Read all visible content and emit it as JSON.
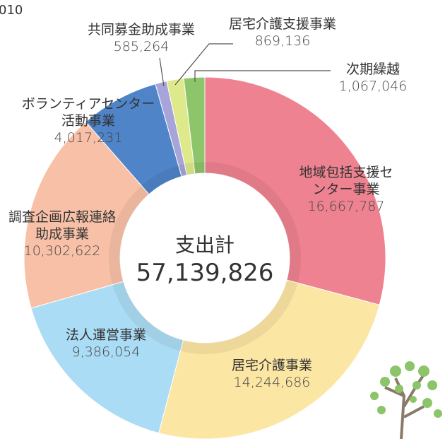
{
  "chart_data": {
    "type": "donut",
    "corner_text": "010",
    "center_title": "支出計",
    "total": 57139826,
    "total_label": "57,139,826",
    "categories": [
      "地域包括支援センター事業",
      "居宅介護事業",
      "法人運営事業",
      "調査企画広報連絡\n助成事業",
      "ボランティアセンター\n活動事業",
      "共同募金助成事業",
      "居宅介護支援事業",
      "次期繰越"
    ],
    "values": [
      16667787,
      14244686,
      9386054,
      10302622,
      4017231,
      585264,
      869136,
      1067046
    ],
    "value_labels": [
      "16,667,787",
      "14,244,686",
      "9,386,054",
      "10,302,622",
      "4,017,231",
      "585,264",
      "869,136",
      "1,067,046"
    ],
    "colors": [
      "#ee8290",
      "#fce6a4",
      "#abdcf5",
      "#f8c1a7",
      "#4f84c8",
      "#a7a4d9",
      "#dee98c",
      "#8dc56b"
    ]
  }
}
